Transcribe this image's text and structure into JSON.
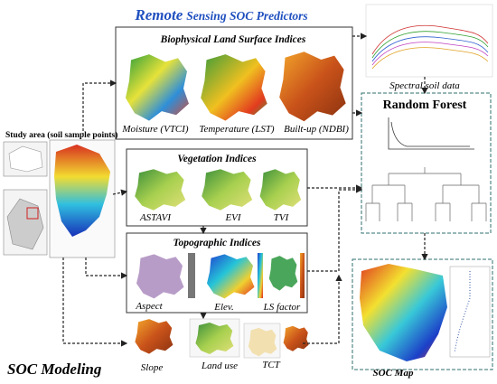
{
  "header": {
    "title": {
      "emphasis": "Remote",
      "rest": "Sensing SOC Predictors"
    }
  },
  "study_area": {
    "label": "Study area (soil sample points)"
  },
  "biophysical": {
    "title": "Biophysical Land Surface Indices",
    "items": [
      "Moisture (VTCI)",
      "Temperature (LST)",
      "Built-up (NDBI)"
    ]
  },
  "vegetation": {
    "title": "Vegetation Indices",
    "items": [
      "ASTAVI",
      "EVI",
      "TVI"
    ]
  },
  "topographic": {
    "title": "Topographic Indices",
    "items": [
      "Aspect",
      "Elev.",
      "LS factor"
    ]
  },
  "other_predictors": {
    "items": [
      "Slope",
      "Land use",
      "TCT"
    ]
  },
  "modeling": {
    "label": "SOC Modeling"
  },
  "spectral": {
    "label": "Spectral soil data"
  },
  "random_forest": {
    "title": "Random Forest"
  },
  "output": {
    "label": "SOC Map"
  }
}
